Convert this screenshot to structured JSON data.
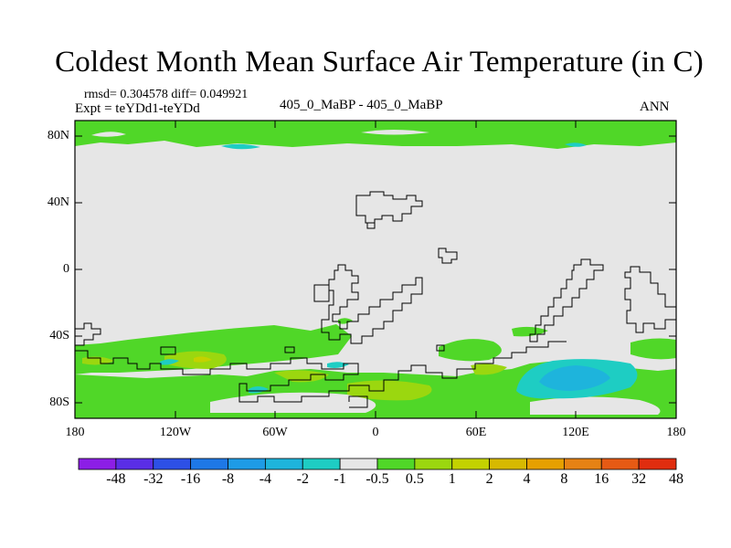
{
  "title": "Coldest Month Mean Surface Air Temperature (in C)",
  "stats_line": "rmsd= 0.304578 diff= 0.049921",
  "experiment_line": "Expt = teYDd1-teYDd",
  "subtitle_center": "405_0_MaBP - 405_0_MaBP",
  "subtitle_right": "ANN",
  "map": {
    "lon_range": [
      -180,
      180
    ],
    "lat_range": [
      -90,
      90
    ],
    "background_color": "#e6e6e6",
    "y_ticks": [
      "80N",
      "40N",
      "0",
      "40S",
      "80S"
    ],
    "x_ticks": [
      "180",
      "120W",
      "60W",
      "0",
      "60E",
      "120E",
      "180"
    ]
  },
  "colorbar": {
    "colors": [
      "#8c1ee6",
      "#5a2ee6",
      "#2d50e6",
      "#1e78e6",
      "#1e9be6",
      "#1eb4dc",
      "#1ecdc3",
      "#e6e6e6",
      "#50d728",
      "#9bd70f",
      "#c3d200",
      "#d7b900",
      "#e6a000",
      "#e68214",
      "#e65a14",
      "#e02d0f"
    ],
    "labels": [
      "-48",
      "-32",
      "-16",
      "-8",
      "-4",
      "-2",
      "-1",
      "-0.5",
      "0.5",
      "1",
      "2",
      "4",
      "8",
      "16",
      "32",
      "48"
    ]
  }
}
